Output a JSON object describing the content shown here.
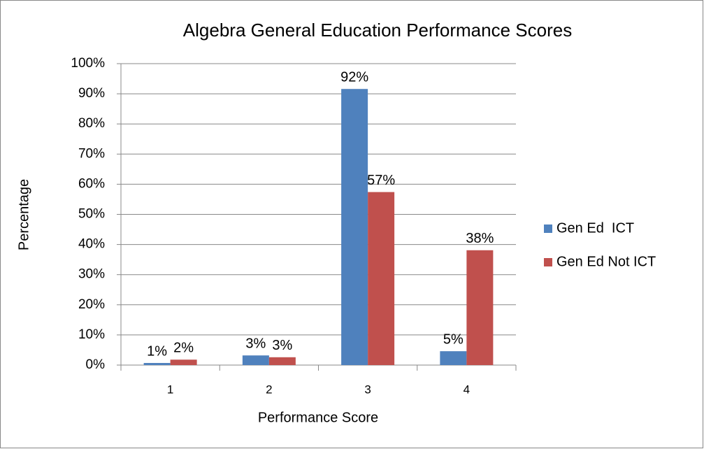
{
  "chart_data": {
    "type": "bar",
    "title": "Algebra General Education Performance Scores",
    "x_label": "Performance Score",
    "y_label": "Percentage",
    "categories": [
      "1",
      "2",
      "3",
      "4"
    ],
    "series": [
      {
        "name": "Gen Ed  ICT",
        "color": "#4f81bd",
        "values": [
          0.7,
          3.2,
          91.6,
          4.6
        ],
        "value_labels": [
          "1%",
          "3%",
          "92%",
          "5%"
        ]
      },
      {
        "name": "Gen Ed Not ICT",
        "color": "#c0504d",
        "values": [
          1.8,
          2.6,
          57.4,
          38.1
        ],
        "value_labels": [
          "2%",
          "3%",
          "57%",
          "38%"
        ]
      }
    ],
    "ylim": [
      0,
      100
    ],
    "yticks": [
      {
        "value": 0,
        "label": "0%"
      },
      {
        "value": 10,
        "label": "10%"
      },
      {
        "value": 20,
        "label": "20%"
      },
      {
        "value": 30,
        "label": "30%"
      },
      {
        "value": 40,
        "label": "40%"
      },
      {
        "value": 50,
        "label": "50%"
      },
      {
        "value": 60,
        "label": "60%"
      },
      {
        "value": 70,
        "label": "70%"
      },
      {
        "value": 80,
        "label": "80%"
      },
      {
        "value": 90,
        "label": "90%"
      },
      {
        "value": 100,
        "label": "100%"
      }
    ],
    "grid": true,
    "legend": "right"
  }
}
